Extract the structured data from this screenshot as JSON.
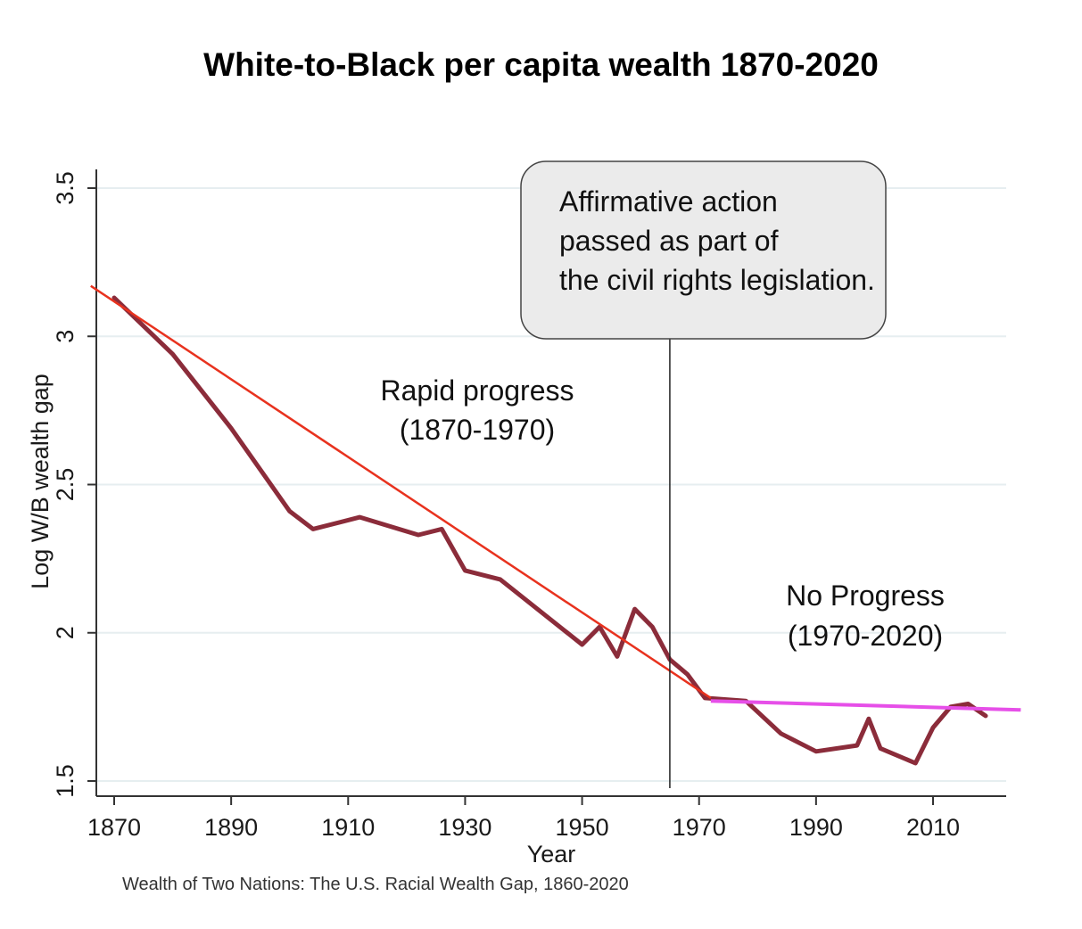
{
  "title": "White-to-Black per capita wealth 1870-2020",
  "source_note": "Wealth of Two Nations: The U.S. Racial Wealth Gap, 1860-2020",
  "colors": {
    "series": "#8b2c3a",
    "trend_early": "#e8321e",
    "trend_late": "#e64fe8",
    "grid": "#e6eef0",
    "axis": "#333333",
    "callout_fill": "#ebebeb"
  },
  "chart_data": {
    "type": "line",
    "title": "White-to-Black per capita wealth 1870-2020",
    "xlabel": "Year",
    "ylabel": "Log W/B wealth gap",
    "xlim": [
      1866,
      2025
    ],
    "ylim": [
      1.45,
      3.5
    ],
    "x_ticks": [
      "1870",
      "1890",
      "1910",
      "1930",
      "1950",
      "1970",
      "1990",
      "2010"
    ],
    "y_ticks": [
      "1.5",
      "2",
      "2.5",
      "3",
      "3.5"
    ],
    "grid": true,
    "series": [
      {
        "x": [
          1870,
          1880,
          1890,
          1900,
          1904,
          1912,
          1922,
          1926,
          1930,
          1936,
          1950,
          1953,
          1956,
          1959,
          1962,
          1965,
          1968,
          1971,
          1978,
          1984,
          1990,
          1997,
          1999,
          2001,
          2007,
          2010,
          2013,
          2016,
          2019
        ],
        "y": [
          3.13,
          2.94,
          2.69,
          2.41,
          2.35,
          2.39,
          2.33,
          2.35,
          2.21,
          2.18,
          1.96,
          2.02,
          1.92,
          2.08,
          2.02,
          1.91,
          1.86,
          1.78,
          1.77,
          1.66,
          1.6,
          1.62,
          1.71,
          1.61,
          1.56,
          1.68,
          1.75,
          1.76,
          1.72
        ]
      }
    ],
    "trend_lines": [
      {
        "x": [
          1866,
          1972
        ],
        "y": [
          3.17,
          1.78
        ]
      },
      {
        "x": [
          1972,
          2025
        ],
        "y": [
          1.77,
          1.74
        ]
      }
    ],
    "event_line": {
      "x": 1965,
      "label": "Affirmative action passed as part of the civil rights legislation."
    },
    "annotations": [
      {
        "text": "Rapid progress",
        "text2": "(1870-1970)"
      },
      {
        "text": "No Progress",
        "text2": "(1970-2020)"
      }
    ]
  }
}
